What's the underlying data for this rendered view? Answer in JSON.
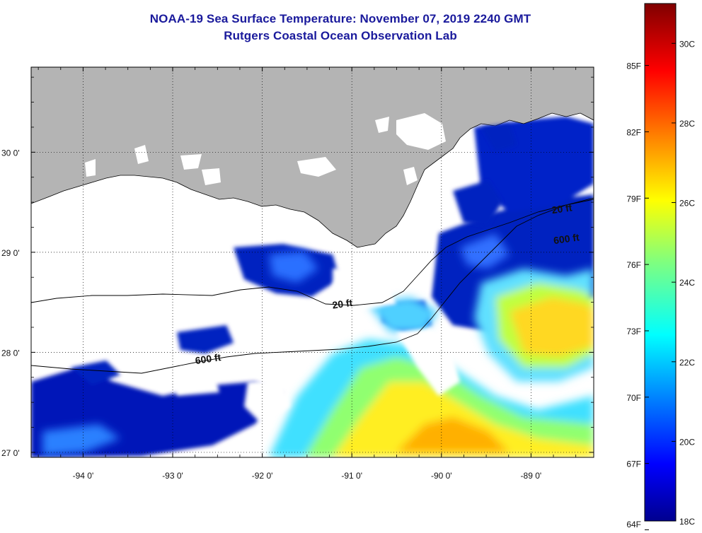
{
  "header": {
    "title_line1": "NOAA-19 Sea Surface Temperature:  November 07, 2019 2240 GMT",
    "title_line2": "Rutgers Coastal Ocean Observation Lab"
  },
  "map": {
    "lon_range": [
      -94.58,
      -88.3
    ],
    "lat_range": [
      26.95,
      30.85
    ],
    "lon_ticks": [
      {
        "value": -94,
        "label": "-94 0'"
      },
      {
        "value": -93,
        "label": "-93 0'"
      },
      {
        "value": -92,
        "label": "-92 0'"
      },
      {
        "value": -91,
        "label": "-91 0'"
      },
      {
        "value": -90,
        "label": "-90 0'"
      },
      {
        "value": -89,
        "label": "-89 0'"
      }
    ],
    "lat_ticks": [
      {
        "value": 27,
        "label": "27 0'"
      },
      {
        "value": 28,
        "label": "28 0'"
      },
      {
        "value": 29,
        "label": "29 0'"
      },
      {
        "value": 30,
        "label": "30 0'"
      }
    ],
    "grid": "dotted",
    "colors": {
      "land": "#b4b4b4",
      "no_data": "#ffffff",
      "contour": "#000000"
    },
    "contour_labels": [
      {
        "text": "20 ft",
        "lon": -91.1,
        "lat": 28.45
      },
      {
        "text": "600 ft",
        "lon": -92.6,
        "lat": 27.9
      },
      {
        "text": "600 ft",
        "lon": -88.6,
        "lat": 29.1
      },
      {
        "text": "20 ft",
        "lon": -88.65,
        "lat": 29.4
      }
    ]
  },
  "colorbar": {
    "celsius_range": [
      18,
      31
    ],
    "fahrenheit_labels": [
      {
        "value": 64,
        "label": "64F"
      },
      {
        "value": 67,
        "label": "67F"
      },
      {
        "value": 70,
        "label": "70F"
      },
      {
        "value": 73,
        "label": "73F"
      },
      {
        "value": 76,
        "label": "76F"
      },
      {
        "value": 79,
        "label": "79F"
      },
      {
        "value": 82,
        "label": "82F"
      },
      {
        "value": 85,
        "label": "85F"
      }
    ],
    "celsius_labels": [
      {
        "value": 18,
        "label": "18C"
      },
      {
        "value": 20,
        "label": "20C"
      },
      {
        "value": 22,
        "label": "22C"
      },
      {
        "value": 24,
        "label": "24C"
      },
      {
        "value": 26,
        "label": "26C"
      },
      {
        "value": 28,
        "label": "28C"
      },
      {
        "value": 30,
        "label": "30C"
      }
    ],
    "colormap": "jet"
  }
}
